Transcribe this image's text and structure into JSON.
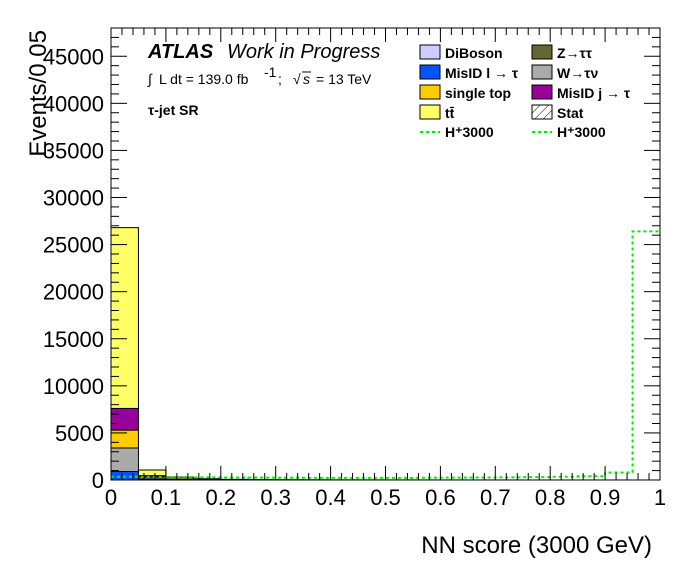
{
  "chart_data": {
    "type": "bar",
    "xlabel": "NN score (3000 GeV)",
    "ylabel": "Events/0.05",
    "xlim": [
      0,
      1
    ],
    "ylim": [
      0,
      48000
    ],
    "xticks": [
      "0",
      "0.1",
      "0.2",
      "0.3",
      "0.4",
      "0.5",
      "0.6",
      "0.7",
      "0.8",
      "0.9",
      "1"
    ],
    "yticks": [
      "0",
      "5000",
      "10000",
      "15000",
      "20000",
      "25000",
      "30000",
      "35000",
      "40000",
      "45000"
    ],
    "bin_edges": [
      0,
      0.05,
      0.1,
      0.15,
      0.2,
      0.25,
      0.3,
      0.35,
      0.4,
      0.45,
      0.5,
      0.55,
      0.6,
      0.65,
      0.7,
      0.75,
      0.8,
      0.85,
      0.9,
      0.95,
      1.0
    ],
    "annotations": {
      "atlas_bold": "ATLAS",
      "atlas_rest": "Work in Progress",
      "lumi_prefix": "L dt = 139.0 fb",
      "lumi_sup": "-1",
      "energy": "= 13 TeV",
      "region": "τ-jet SR"
    },
    "stack": [
      {
        "name": "MisID l → τ",
        "color": "#0055ff",
        "values": [
          900,
          60,
          20,
          10,
          0,
          0,
          0,
          0,
          0,
          0,
          0,
          0,
          0,
          0,
          0,
          0,
          0,
          0,
          0,
          0
        ]
      },
      {
        "name": "W→τν",
        "color": "#aaaaaa",
        "values": [
          2500,
          150,
          40,
          20,
          10,
          0,
          0,
          0,
          0,
          0,
          0,
          0,
          0,
          0,
          0,
          0,
          0,
          0,
          0,
          0
        ]
      },
      {
        "name": "single top",
        "color": "#ffcc00",
        "values": [
          1900,
          150,
          30,
          15,
          0,
          0,
          0,
          0,
          0,
          0,
          0,
          0,
          0,
          0,
          0,
          0,
          0,
          0,
          0,
          0
        ]
      },
      {
        "name": "MisID j → τ",
        "color": "#990099",
        "values": [
          2300,
          100,
          20,
          10,
          0,
          0,
          0,
          0,
          0,
          0,
          0,
          0,
          0,
          0,
          0,
          0,
          0,
          0,
          0,
          0
        ]
      },
      {
        "name": "tt̄",
        "color": "#ffff66",
        "values": [
          19200,
          600,
          200,
          80,
          60,
          40,
          30,
          25,
          20,
          15,
          12,
          10,
          8,
          6,
          5,
          4,
          3,
          2,
          2,
          1
        ]
      }
    ],
    "signal": {
      "name": "H⁺3000",
      "color": "#00ee00",
      "values": [
        350,
        320,
        300,
        280,
        260,
        250,
        240,
        230,
        230,
        230,
        230,
        240,
        250,
        260,
        280,
        300,
        350,
        400,
        800,
        26400
      ]
    },
    "legend": [
      {
        "label": "DiBoson",
        "swatch": "box",
        "color": "#ccccff"
      },
      {
        "label": "Z→ττ",
        "swatch": "box",
        "color": "#666633"
      },
      {
        "label": "MisID l → τ",
        "swatch": "box",
        "color": "#0055ff"
      },
      {
        "label": "W→τν",
        "swatch": "box",
        "color": "#aaaaaa"
      },
      {
        "label": "single top",
        "swatch": "box",
        "color": "#ffcc00"
      },
      {
        "label": "MisID j → τ",
        "swatch": "box",
        "color": "#990099"
      },
      {
        "label": "tt̄",
        "swatch": "box",
        "color": "#ffff66"
      },
      {
        "label": "Stat",
        "swatch": "hatch",
        "color": "#000000"
      },
      {
        "label": "H⁺3000",
        "swatch": "dash",
        "color": "#00ee00"
      },
      {
        "label": "H⁺3000",
        "swatch": "dash",
        "color": "#00ee00"
      }
    ]
  }
}
